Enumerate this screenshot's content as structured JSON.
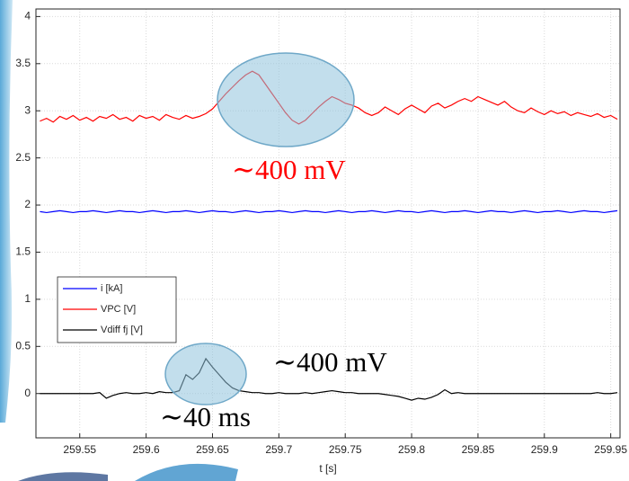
{
  "chart_data": {
    "type": "line",
    "xlabel": "t [s]",
    "annotations": [
      {
        "text": "∼400 mV",
        "color": "#ff0000"
      },
      {
        "text": "∼400 mV",
        "color": "#000000"
      },
      {
        "text": "∼40 ms",
        "color": "#000000"
      }
    ],
    "x": [
      259.52,
      259.525,
      259.53,
      259.535,
      259.54,
      259.545,
      259.55,
      259.555,
      259.56,
      259.565,
      259.57,
      259.575,
      259.58,
      259.585,
      259.59,
      259.595,
      259.6,
      259.605,
      259.61,
      259.615,
      259.62,
      259.625,
      259.63,
      259.635,
      259.64,
      259.645,
      259.65,
      259.655,
      259.66,
      259.665,
      259.67,
      259.675,
      259.68,
      259.685,
      259.69,
      259.695,
      259.7,
      259.705,
      259.71,
      259.715,
      259.72,
      259.725,
      259.73,
      259.735,
      259.74,
      259.745,
      259.75,
      259.755,
      259.76,
      259.765,
      259.77,
      259.775,
      259.78,
      259.785,
      259.79,
      259.795,
      259.8,
      259.805,
      259.81,
      259.815,
      259.82,
      259.825,
      259.83,
      259.835,
      259.84,
      259.845,
      259.85,
      259.855,
      259.86,
      259.865,
      259.87,
      259.875,
      259.88,
      259.885,
      259.89,
      259.895,
      259.9,
      259.905,
      259.91,
      259.915,
      259.92,
      259.925,
      259.93,
      259.935,
      259.94,
      259.945,
      259.95,
      259.955
    ],
    "series": [
      {
        "name": "i [kA]",
        "color": "#0000ff",
        "values": [
          1.93,
          1.92,
          1.93,
          1.94,
          1.93,
          1.92,
          1.93,
          1.93,
          1.94,
          1.93,
          1.92,
          1.93,
          1.94,
          1.93,
          1.93,
          1.92,
          1.93,
          1.94,
          1.93,
          1.92,
          1.93,
          1.93,
          1.94,
          1.93,
          1.92,
          1.93,
          1.94,
          1.93,
          1.93,
          1.92,
          1.93,
          1.94,
          1.93,
          1.92,
          1.93,
          1.93,
          1.94,
          1.93,
          1.92,
          1.93,
          1.94,
          1.93,
          1.93,
          1.92,
          1.93,
          1.94,
          1.93,
          1.92,
          1.93,
          1.93,
          1.94,
          1.93,
          1.92,
          1.93,
          1.94,
          1.93,
          1.93,
          1.92,
          1.93,
          1.94,
          1.93,
          1.92,
          1.93,
          1.93,
          1.94,
          1.93,
          1.92,
          1.93,
          1.94,
          1.93,
          1.93,
          1.92,
          1.93,
          1.94,
          1.93,
          1.92,
          1.93,
          1.93,
          1.94,
          1.93,
          1.92,
          1.93,
          1.94,
          1.93,
          1.93,
          1.92,
          1.93,
          1.94
        ]
      },
      {
        "name": "VPC [V]",
        "color": "#ff0000",
        "values": [
          2.89,
          2.92,
          2.88,
          2.94,
          2.91,
          2.95,
          2.9,
          2.93,
          2.89,
          2.94,
          2.92,
          2.96,
          2.91,
          2.93,
          2.89,
          2.95,
          2.92,
          2.94,
          2.9,
          2.96,
          2.93,
          2.91,
          2.95,
          2.92,
          2.94,
          2.97,
          3.02,
          3.1,
          3.18,
          3.25,
          3.32,
          3.38,
          3.42,
          3.38,
          3.28,
          3.18,
          3.08,
          2.98,
          2.9,
          2.86,
          2.9,
          2.97,
          3.04,
          3.1,
          3.15,
          3.12,
          3.08,
          3.06,
          3.03,
          2.98,
          2.95,
          2.98,
          3.04,
          3.0,
          2.96,
          3.02,
          3.06,
          3.02,
          2.98,
          3.05,
          3.08,
          3.03,
          3.06,
          3.1,
          3.13,
          3.1,
          3.15,
          3.12,
          3.09,
          3.06,
          3.1,
          3.04,
          3.0,
          2.98,
          3.03,
          2.99,
          2.96,
          3.0,
          2.97,
          2.99,
          2.95,
          2.98,
          2.96,
          2.94,
          2.97,
          2.93,
          2.95,
          2.91
        ]
      },
      {
        "name": "Vdiff fj [V]",
        "color": "#000000",
        "values": [
          0,
          0,
          0,
          0,
          0,
          0,
          0,
          0,
          0,
          0.01,
          -0.05,
          -0.02,
          0,
          0.01,
          0,
          0,
          0.01,
          0,
          0.02,
          0.01,
          0.01,
          0.03,
          0.2,
          0.15,
          0.22,
          0.37,
          0.28,
          0.2,
          0.12,
          0.06,
          0.03,
          0.02,
          0.01,
          0.01,
          0,
          0,
          0.01,
          0,
          0,
          0,
          0.01,
          0,
          0.01,
          0.02,
          0.03,
          0.02,
          0.01,
          0.01,
          0,
          0,
          0,
          0,
          -0.01,
          -0.02,
          -0.03,
          -0.05,
          -0.07,
          -0.05,
          -0.06,
          -0.04,
          -0.01,
          0.04,
          0,
          0.01,
          0,
          0,
          0,
          0,
          0,
          0,
          0,
          0,
          0,
          0,
          0,
          0,
          0,
          0,
          0,
          0,
          0,
          0,
          0,
          0,
          0.01,
          0,
          0,
          0.01
        ]
      }
    ],
    "xlim": [
      259.517,
      259.957
    ],
    "xticks": [
      259.55,
      259.6,
      259.65,
      259.7,
      259.75,
      259.8,
      259.85,
      259.9,
      259.95
    ],
    "ylim": [
      -0.47,
      4.08
    ],
    "yticks": [
      0,
      0.5,
      1,
      1.5,
      2,
      2.5,
      3,
      3.5,
      4
    ],
    "grid": true,
    "legend": "lower left"
  }
}
